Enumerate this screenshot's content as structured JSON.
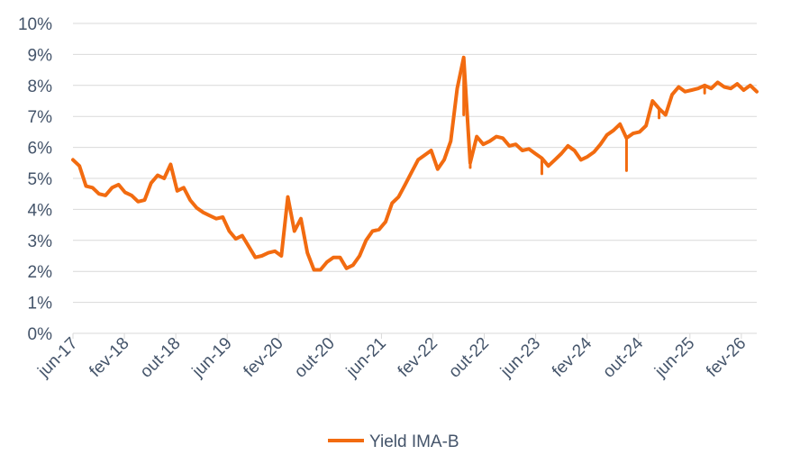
{
  "chart_data": {
    "type": "line",
    "title": "",
    "xlabel": "",
    "ylabel": "",
    "ylim": [
      0,
      10
    ],
    "y_ticks": [
      "0%",
      "1%",
      "2%",
      "3%",
      "4%",
      "5%",
      "6%",
      "7%",
      "8%",
      "9%",
      "10%"
    ],
    "x_ticks": [
      "jun-17",
      "fev-18",
      "out-18",
      "jun-19",
      "fev-20",
      "out-20",
      "jun-21",
      "fev-22",
      "out-22",
      "jun-23",
      "fev-24",
      "out-24",
      "jun-25",
      "fev-26"
    ],
    "x_range": [
      "2017-06",
      "2026-03"
    ],
    "grid": true,
    "legend": "bottom",
    "series": [
      {
        "name": "Yield IMA-B",
        "color": "#f26b10",
        "points": [
          [
            "2017-06",
            5.6
          ],
          [
            "2017-07",
            5.4
          ],
          [
            "2017-08",
            4.75
          ],
          [
            "2017-09",
            4.7
          ],
          [
            "2017-10",
            4.5
          ],
          [
            "2017-11",
            4.45
          ],
          [
            "2017-12",
            4.7
          ],
          [
            "2018-01",
            4.8
          ],
          [
            "2018-02",
            4.55
          ],
          [
            "2018-03",
            4.45
          ],
          [
            "2018-04",
            4.25
          ],
          [
            "2018-05",
            4.3
          ],
          [
            "2018-06",
            4.85
          ],
          [
            "2018-07",
            5.1
          ],
          [
            "2018-08",
            5.0
          ],
          [
            "2018-09",
            5.45
          ],
          [
            "2018-10",
            4.6
          ],
          [
            "2018-11",
            4.7
          ],
          [
            "2018-12",
            4.3
          ],
          [
            "2019-01",
            4.05
          ],
          [
            "2019-02",
            3.9
          ],
          [
            "2019-03",
            3.8
          ],
          [
            "2019-04",
            3.7
          ],
          [
            "2019-05",
            3.75
          ],
          [
            "2019-06",
            3.3
          ],
          [
            "2019-07",
            3.05
          ],
          [
            "2019-08",
            3.15
          ],
          [
            "2019-09",
            2.8
          ],
          [
            "2019-10",
            2.45
          ],
          [
            "2019-11",
            2.5
          ],
          [
            "2019-12",
            2.6
          ],
          [
            "2020-01",
            2.65
          ],
          [
            "2020-02",
            2.5
          ],
          [
            "2020-03",
            4.4
          ],
          [
            "2020-04",
            3.3
          ],
          [
            "2020-05",
            3.7
          ],
          [
            "2020-06",
            2.6
          ],
          [
            "2020-07",
            2.05
          ],
          [
            "2020-08",
            2.05
          ],
          [
            "2020-09",
            2.3
          ],
          [
            "2020-10",
            2.45
          ],
          [
            "2020-11",
            2.45
          ],
          [
            "2020-12",
            2.1
          ],
          [
            "2021-01",
            2.2
          ],
          [
            "2021-02",
            2.5
          ],
          [
            "2021-03",
            3.0
          ],
          [
            "2021-04",
            3.3
          ],
          [
            "2021-05",
            3.35
          ],
          [
            "2021-06",
            3.6
          ],
          [
            "2021-07",
            4.2
          ],
          [
            "2021-08",
            4.4
          ],
          [
            "2021-09",
            4.8
          ],
          [
            "2021-10",
            5.2
          ],
          [
            "2021-11",
            5.6
          ],
          [
            "2021-12",
            5.75
          ],
          [
            "2022-01",
            5.9
          ],
          [
            "2022-02",
            5.3
          ],
          [
            "2022-03",
            5.6
          ],
          [
            "2022-04",
            6.2
          ],
          [
            "2022-05",
            7.9
          ],
          [
            "2022-06",
            8.9
          ],
          [
            "2022-07",
            5.5
          ],
          [
            "2022-08",
            6.35
          ],
          [
            "2022-09",
            6.1
          ],
          [
            "2022-10",
            6.2
          ],
          [
            "2022-11",
            6.35
          ],
          [
            "2022-12",
            6.3
          ],
          [
            "2023-01",
            6.05
          ],
          [
            "2023-02",
            6.1
          ],
          [
            "2023-03",
            5.9
          ],
          [
            "2023-04",
            5.95
          ],
          [
            "2023-05",
            5.8
          ],
          [
            "2023-06",
            5.65
          ],
          [
            "2023-07",
            5.4
          ],
          [
            "2023-08",
            5.6
          ],
          [
            "2023-09",
            5.8
          ],
          [
            "2023-10",
            6.05
          ],
          [
            "2023-11",
            5.9
          ],
          [
            "2023-12",
            5.6
          ],
          [
            "2024-01",
            5.7
          ],
          [
            "2024-02",
            5.85
          ],
          [
            "2024-03",
            6.1
          ],
          [
            "2024-04",
            6.4
          ],
          [
            "2024-05",
            6.55
          ],
          [
            "2024-06",
            6.75
          ],
          [
            "2024-07",
            6.3
          ],
          [
            "2024-08",
            6.45
          ],
          [
            "2024-09",
            6.5
          ],
          [
            "2024-10",
            6.7
          ],
          [
            "2024-11",
            7.5
          ],
          [
            "2024-12",
            7.25
          ],
          [
            "2025-01",
            7.05
          ],
          [
            "2025-02",
            7.7
          ],
          [
            "2025-03",
            7.95
          ],
          [
            "2025-04",
            7.8
          ],
          [
            "2025-05",
            7.85
          ],
          [
            "2025-06",
            7.9
          ],
          [
            "2025-07",
            8.0
          ],
          [
            "2025-08",
            7.9
          ],
          [
            "2025-09",
            8.1
          ],
          [
            "2025-10",
            7.95
          ],
          [
            "2025-11",
            7.9
          ],
          [
            "2025-12",
            8.05
          ],
          [
            "2026-01",
            7.85
          ],
          [
            "2026-02",
            8.0
          ],
          [
            "2026-03",
            7.8
          ]
        ],
        "spikes": [
          [
            "2022-06",
            7.05
          ],
          [
            "2022-07",
            5.35
          ],
          [
            "2023-06",
            5.15
          ],
          [
            "2024-07",
            5.25
          ],
          [
            "2024-12",
            6.95
          ],
          [
            "2025-07",
            7.75
          ]
        ]
      }
    ]
  }
}
